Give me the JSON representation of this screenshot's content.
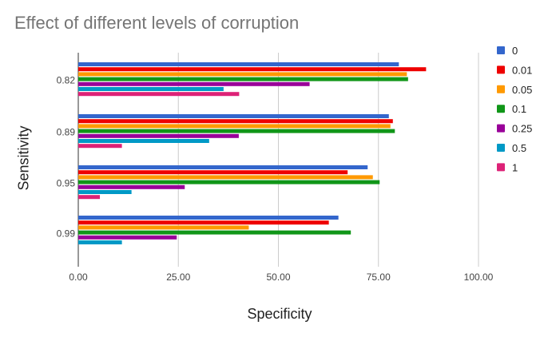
{
  "chart_data": {
    "type": "bar",
    "orientation": "horizontal",
    "title": "Effect of different levels of corruption",
    "xlabel": "Specificity",
    "ylabel": "Sensitivity",
    "categories": [
      "0.82",
      "0.89",
      "0.95",
      "0.99"
    ],
    "xlim": [
      0,
      100
    ],
    "xticks": [
      "0.00",
      "25.00",
      "50.00",
      "75.00",
      "100.00"
    ],
    "grid": true,
    "legend_position": "right",
    "series": [
      {
        "name": "0",
        "color": "#3366cc",
        "values": [
          80.1,
          77.6,
          72.3,
          65.0
        ]
      },
      {
        "name": "0.01",
        "color": "#ee0000",
        "values": [
          86.9,
          78.6,
          67.3,
          62.6
        ]
      },
      {
        "name": "0.05",
        "color": "#ff9900",
        "values": [
          82.1,
          78.0,
          73.6,
          42.6
        ]
      },
      {
        "name": "0.1",
        "color": "#109618",
        "values": [
          82.4,
          79.1,
          75.3,
          68.1
        ]
      },
      {
        "name": "0.25",
        "color": "#990099",
        "values": [
          57.8,
          40.1,
          26.6,
          24.6
        ]
      },
      {
        "name": "0.5",
        "color": "#0099c6",
        "values": [
          36.3,
          32.7,
          13.3,
          10.9
        ]
      },
      {
        "name": "1",
        "color": "#dd2277",
        "values": [
          40.2,
          10.9,
          5.4,
          0
        ]
      }
    ]
  }
}
